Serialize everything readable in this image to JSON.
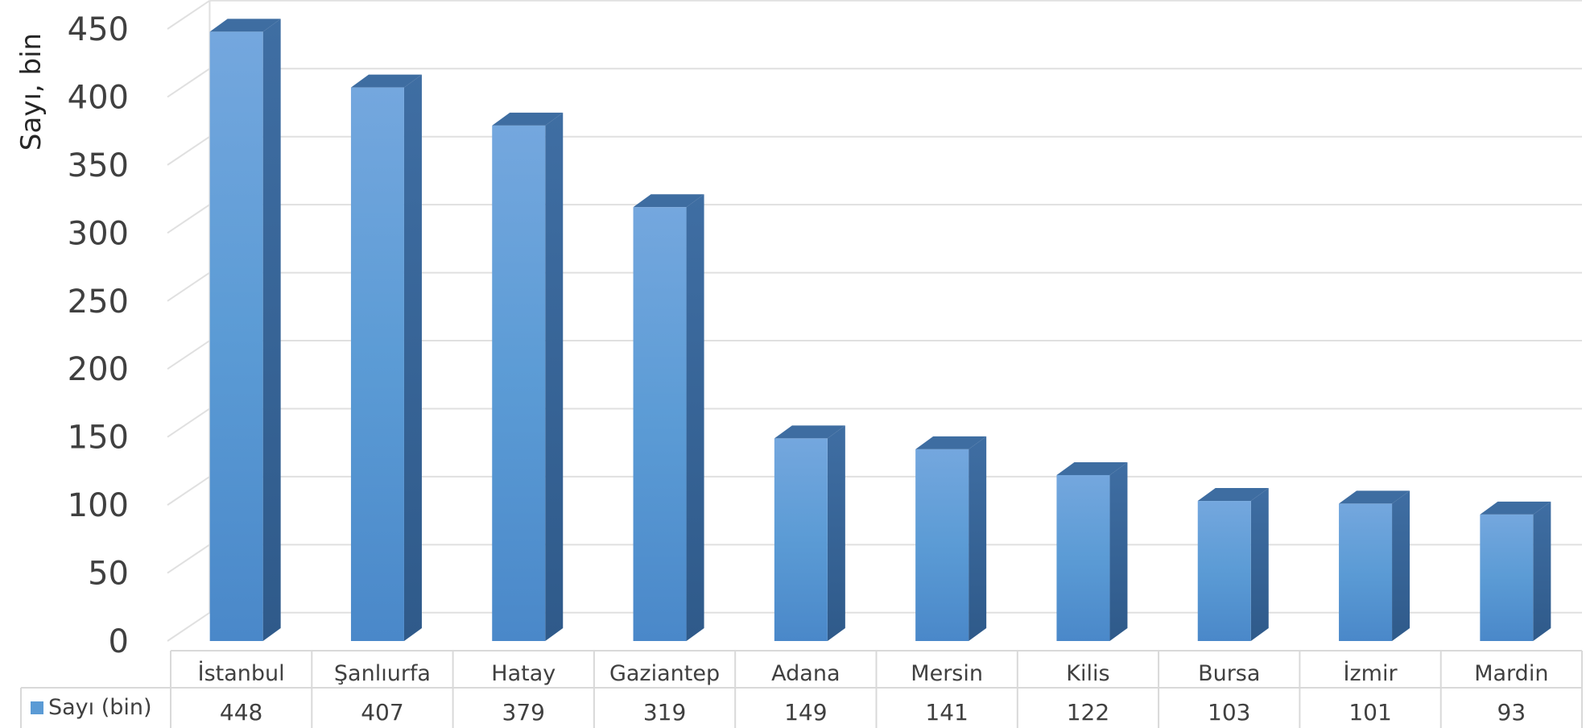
{
  "chart_data": {
    "type": "bar",
    "title": "",
    "xlabel": "",
    "ylabel": "Sayı, bin",
    "ylim": [
      0,
      450
    ],
    "ytick_step": 50,
    "grid": true,
    "legend": "data-table-left",
    "categories": [
      "İstanbul",
      "Şanlıurfa",
      "Hatay",
      "Gaziantep",
      "Adana",
      "Mersin",
      "Kilis",
      "Bursa",
      "İzmir",
      "Mardin"
    ],
    "series": [
      {
        "name": "Sayı (bin)",
        "color": "#5b9bd5",
        "values": [
          448,
          407,
          379,
          319,
          149,
          141,
          122,
          103,
          101,
          93
        ]
      }
    ]
  }
}
